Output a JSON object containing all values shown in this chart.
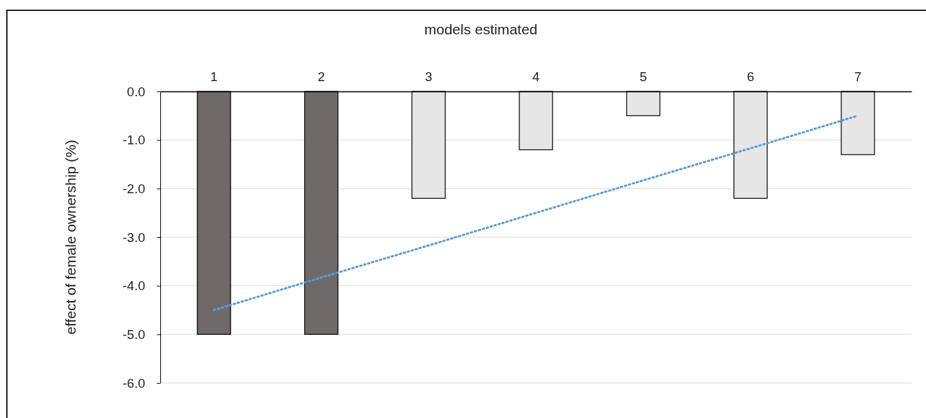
{
  "chart_data": {
    "type": "bar",
    "title": "models estimated",
    "ylabel": "effect of female ownership  (%)",
    "categories": [
      "1",
      "2",
      "3",
      "4",
      "5",
      "6",
      "7"
    ],
    "series": [
      {
        "values": [
          -5.0,
          -5.0,
          -2.2,
          -1.2,
          -0.5,
          -2.2,
          -1.3
        ],
        "colors": [
          "#6f6a69",
          "#6f6a69",
          "#e6e6e6",
          "#e6e6e6",
          "#e6e6e6",
          "#e6e6e6",
          "#e6e6e6"
        ]
      },
      {
        "type": "line",
        "values": [
          -4.5,
          -3.83,
          -3.17,
          -2.5,
          -1.83,
          -1.17,
          -0.5
        ],
        "color": "#5b9bd5",
        "line_style": "dotted"
      }
    ],
    "ylim": [
      -6,
      0
    ],
    "yticks": [
      {
        "value": 0,
        "label": "0.0"
      },
      {
        "value": -1,
        "label": "-1.0"
      },
      {
        "value": -2,
        "label": "-2.0"
      },
      {
        "value": -3,
        "label": "-3.0"
      },
      {
        "value": -4,
        "label": "-4.0"
      },
      {
        "value": -5,
        "label": "-5.0"
      },
      {
        "value": -6,
        "label": "-6.0"
      }
    ],
    "grid": "y"
  }
}
